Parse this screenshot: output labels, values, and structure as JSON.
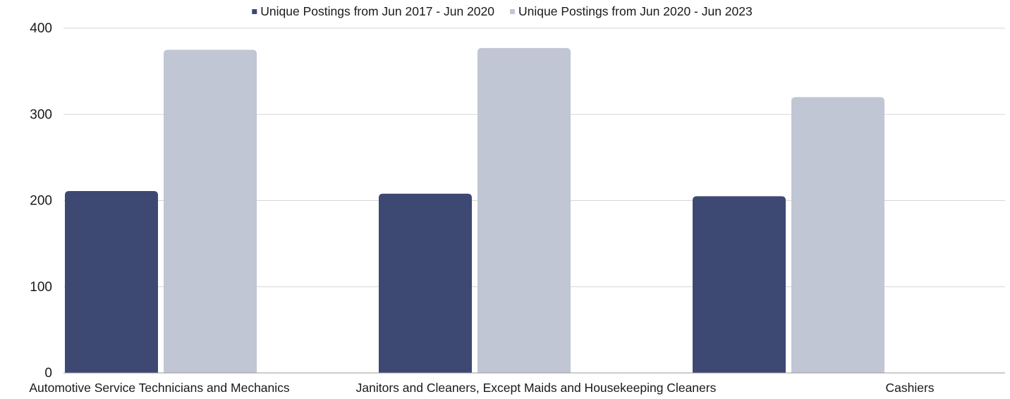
{
  "chart_data": {
    "type": "bar",
    "categories": [
      "Automotive Service Technicians and Mechanics",
      "Janitors and Cleaners, Except Maids and Housekeeping Cleaners",
      "Cashiers"
    ],
    "series": [
      {
        "name": "Unique Postings from Jun 2017 - Jun 2020",
        "values": [
          211,
          208,
          205
        ],
        "color": "#3d4873"
      },
      {
        "name": "Unique Postings from Jun 2020 - Jun 2023",
        "values": [
          375,
          377,
          320
        ],
        "color": "#c0c6d3"
      }
    ],
    "ylim": [
      0,
      400
    ],
    "yticks": [
      0,
      100,
      200,
      300,
      400
    ],
    "ytick_labels": [
      "0",
      "100",
      "200",
      "300",
      "400"
    ],
    "grid": true,
    "legend_position": "top",
    "title": "",
    "xlabel": "",
    "ylabel": ""
  }
}
